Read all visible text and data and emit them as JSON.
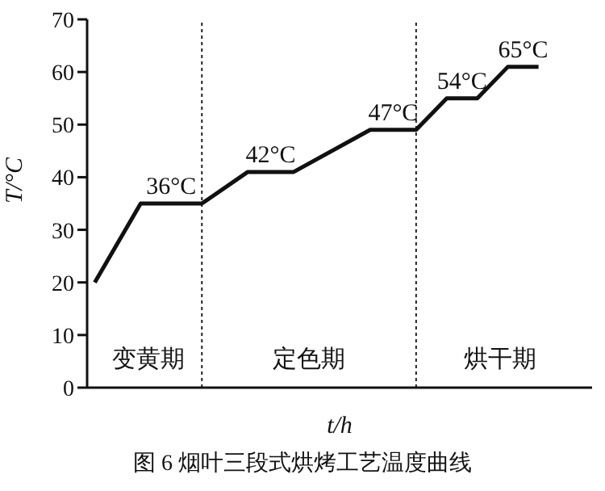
{
  "chart_data": {
    "type": "line",
    "title": "图 6 烟叶三段式烘烤工艺温度曲线",
    "xlabel": "t/h",
    "ylabel": "T/°C",
    "categories": [
      null,
      null,
      null,
      null,
      null,
      null,
      null,
      null,
      null,
      null,
      null,
      null,
      null,
      null,
      null,
      null,
      null,
      null,
      null,
      null,
      null,
      null,
      null,
      null,
      null,
      null,
      null,
      null,
      null,
      null,
      null,
      null,
      null
    ],
    "series": [
      {
        "color": "#111111",
        "values": [
          20,
          null,
          null,
          35,
          null,
          null,
          null,
          35,
          null,
          null,
          41,
          null,
          null,
          41,
          null,
          null,
          null,
          null,
          49,
          null,
          null,
          49,
          null,
          55,
          null,
          55,
          null,
          61,
          null,
          61,
          null,
          null,
          null
        ]
      }
    ],
    "ylim": [
      0,
      70
    ],
    "yticks": [
      0,
      10,
      20,
      30,
      40,
      50,
      60,
      70
    ],
    "tick_labels": "y",
    "grid": false,
    "legend": false,
    "marker": "none",
    "line_style": "solid",
    "annotations": [
      {
        "text": "36°C",
        "y": 35
      },
      {
        "text": "42°C",
        "y": 41
      },
      {
        "text": "47°C",
        "y": 49
      },
      {
        "text": "54°C",
        "y": 55
      },
      {
        "text": "65°C",
        "y": 61
      },
      "变黄期",
      "定色期",
      "烘干期"
    ]
  }
}
